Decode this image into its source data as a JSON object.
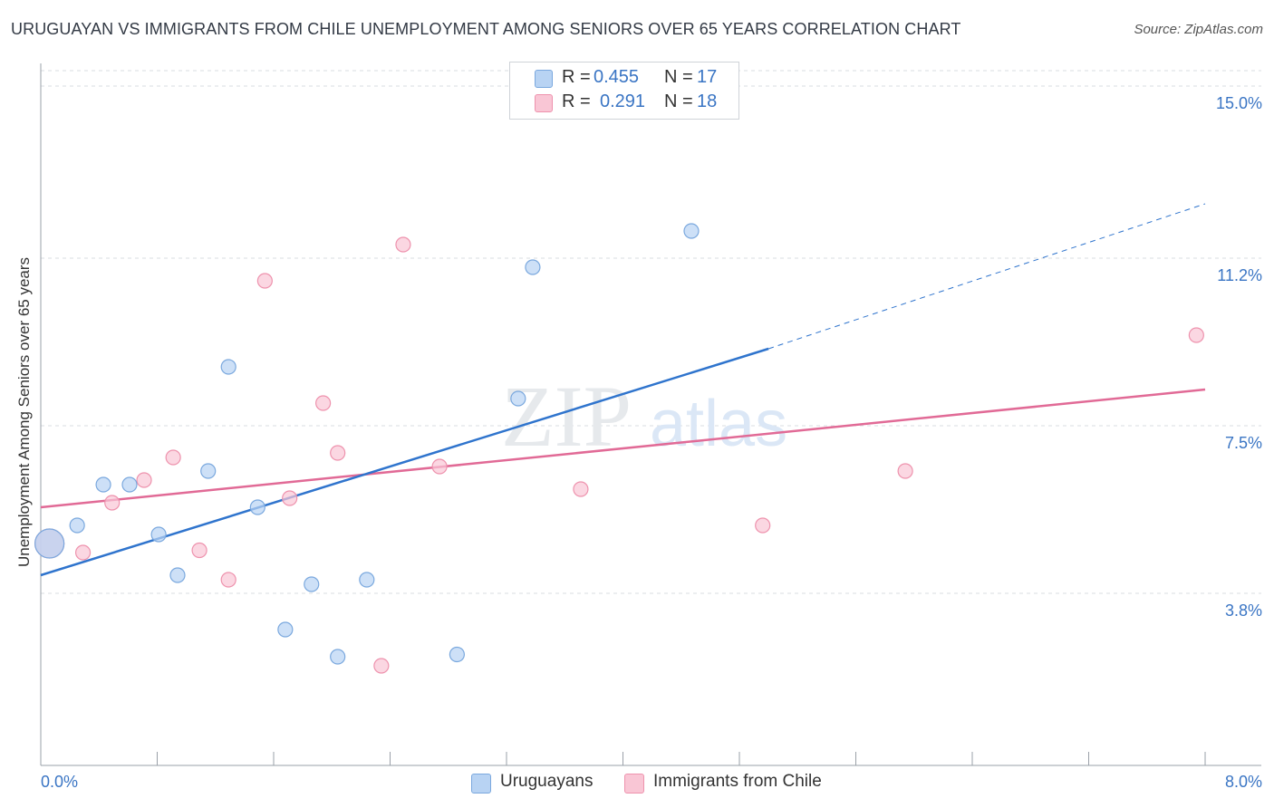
{
  "title": "URUGUAYAN VS IMMIGRANTS FROM CHILE UNEMPLOYMENT AMONG SENIORS OVER 65 YEARS CORRELATION CHART",
  "source": "Source: ZipAtlas.com",
  "watermark": {
    "zip": "ZIP",
    "atlas": "atlas"
  },
  "legend": {
    "uruguayans": {
      "r_label": "R = ",
      "r_value": "0.455",
      "n_label": "N = ",
      "n_value": "17"
    },
    "chile": {
      "r_label": "R = ",
      "r_value": "0.291",
      "n_label": "N = ",
      "n_value": "18"
    }
  },
  "bottom_legend": {
    "uruguayans": "Uruguayans",
    "chile": "Immigrants from Chile"
  },
  "colors": {
    "blue_fill": "#b8d3f3",
    "blue_stroke": "#7aa8de",
    "blue_line": "#2f74cd",
    "pink_fill": "#f9c6d5",
    "pink_stroke": "#ee92ad",
    "pink_line": "#e16a96",
    "axis_text": "#3a75c4",
    "grid": "#d9dde2"
  },
  "chart_data": {
    "type": "scatter",
    "title": "URUGUAYAN VS IMMIGRANTS FROM CHILE UNEMPLOYMENT AMONG SENIORS OVER 65 YEARS CORRELATION CHART",
    "xlabel": "",
    "ylabel": "Unemployment Among Seniors over 65 years",
    "xlim": [
      0,
      8
    ],
    "ylim": [
      0,
      15.5
    ],
    "x_tick_labels": [
      "0.0%",
      "8.0%"
    ],
    "y_ticks": [
      3.8,
      7.5,
      11.2,
      15.0
    ],
    "y_tick_labels": [
      "3.8%",
      "7.5%",
      "11.2%",
      "15.0%"
    ],
    "series": [
      {
        "name": "Uruguayans",
        "r": 0.455,
        "n": 17,
        "points": [
          {
            "x": 0.06,
            "y": 4.9,
            "big": true
          },
          {
            "x": 0.25,
            "y": 5.3
          },
          {
            "x": 0.43,
            "y": 6.2
          },
          {
            "x": 0.61,
            "y": 6.2
          },
          {
            "x": 0.81,
            "y": 5.1
          },
          {
            "x": 0.94,
            "y": 4.2
          },
          {
            "x": 1.15,
            "y": 6.5
          },
          {
            "x": 1.29,
            "y": 8.8
          },
          {
            "x": 1.49,
            "y": 5.7
          },
          {
            "x": 1.68,
            "y": 3.0
          },
          {
            "x": 1.86,
            "y": 4.0
          },
          {
            "x": 2.04,
            "y": 2.4
          },
          {
            "x": 2.24,
            "y": 4.1
          },
          {
            "x": 2.86,
            "y": 2.45
          },
          {
            "x": 3.28,
            "y": 8.1
          },
          {
            "x": 3.38,
            "y": 11.0
          },
          {
            "x": 4.47,
            "y": 11.8
          }
        ],
        "trend": {
          "x0": 0.0,
          "y0": 4.2,
          "x1": 5.0,
          "y1": 9.2,
          "dash_x1": 8.0,
          "dash_y1": 12.4
        }
      },
      {
        "name": "Immigrants from Chile",
        "r": 0.291,
        "n": 18,
        "points": [
          {
            "x": 0.06,
            "y": 4.9,
            "big": true
          },
          {
            "x": 0.29,
            "y": 4.7
          },
          {
            "x": 0.49,
            "y": 5.8
          },
          {
            "x": 0.71,
            "y": 6.3
          },
          {
            "x": 0.91,
            "y": 6.8
          },
          {
            "x": 1.09,
            "y": 4.75
          },
          {
            "x": 1.29,
            "y": 4.1
          },
          {
            "x": 1.54,
            "y": 10.7
          },
          {
            "x": 1.71,
            "y": 5.9
          },
          {
            "x": 1.94,
            "y": 8.0
          },
          {
            "x": 2.04,
            "y": 6.9
          },
          {
            "x": 2.34,
            "y": 2.2
          },
          {
            "x": 2.49,
            "y": 11.5
          },
          {
            "x": 2.74,
            "y": 6.6
          },
          {
            "x": 3.71,
            "y": 6.1
          },
          {
            "x": 4.96,
            "y": 5.3
          },
          {
            "x": 5.94,
            "y": 6.5
          },
          {
            "x": 7.94,
            "y": 9.5
          }
        ],
        "trend": {
          "x0": 0.0,
          "y0": 5.7,
          "x1": 8.0,
          "y1": 8.3
        }
      }
    ]
  }
}
